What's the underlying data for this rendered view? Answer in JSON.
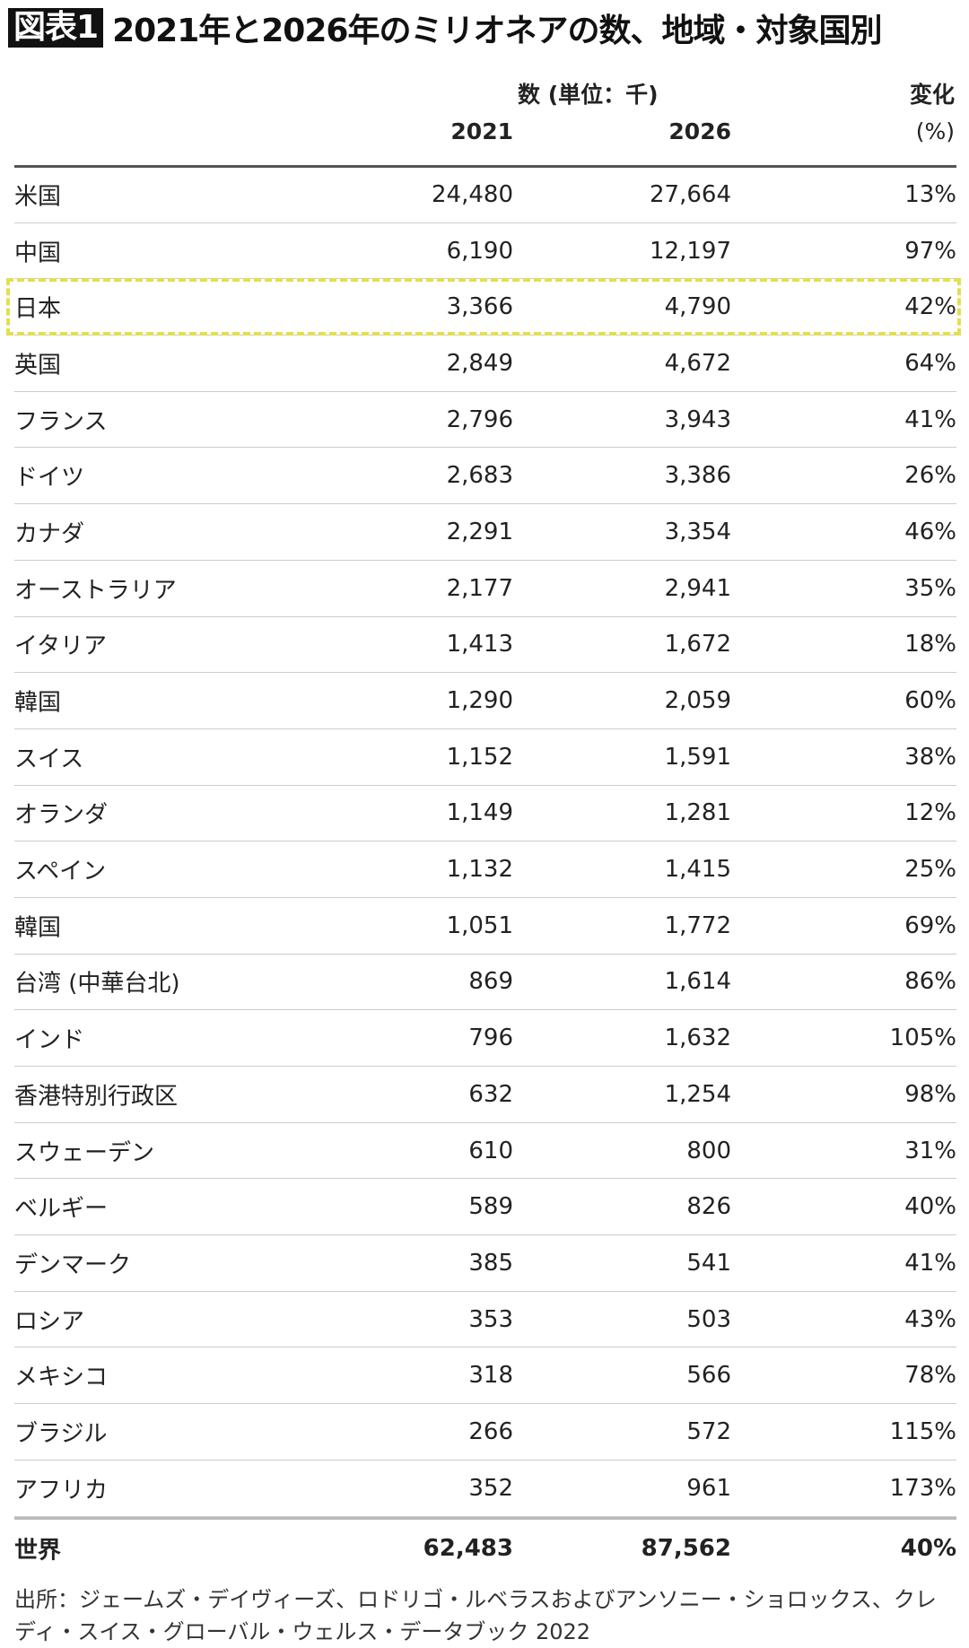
{
  "title": {
    "badge": "図表1",
    "text": "2021年と2026年のミリオネアの数、地域・対象国別"
  },
  "header": {
    "count_group": "数 (単位：千)",
    "change": "変化",
    "col_2021": "2021",
    "col_2026": "2026",
    "col_pct": "(%)"
  },
  "rows": [
    {
      "name": "米国",
      "y2021": "24,480",
      "y2026": "27,664",
      "change": "13%"
    },
    {
      "name": "中国",
      "y2021": "6,190",
      "y2026": "12,197",
      "change": "97%"
    },
    {
      "name": "日本",
      "y2021": "3,366",
      "y2026": "4,790",
      "change": "42%"
    },
    {
      "name": "英国",
      "y2021": "2,849",
      "y2026": "4,672",
      "change": "64%"
    },
    {
      "name": "フランス",
      "y2021": "2,796",
      "y2026": "3,943",
      "change": "41%"
    },
    {
      "name": "ドイツ",
      "y2021": "2,683",
      "y2026": "3,386",
      "change": "26%"
    },
    {
      "name": "カナダ",
      "y2021": "2,291",
      "y2026": "3,354",
      "change": "46%"
    },
    {
      "name": "オーストラリア",
      "y2021": "2,177",
      "y2026": "2,941",
      "change": "35%"
    },
    {
      "name": "イタリア",
      "y2021": "1,413",
      "y2026": "1,672",
      "change": "18%"
    },
    {
      "name": "韓国",
      "y2021": "1,290",
      "y2026": "2,059",
      "change": "60%"
    },
    {
      "name": "スイス",
      "y2021": "1,152",
      "y2026": "1,591",
      "change": "38%"
    },
    {
      "name": "オランダ",
      "y2021": "1,149",
      "y2026": "1,281",
      "change": "12%"
    },
    {
      "name": "スペイン",
      "y2021": "1,132",
      "y2026": "1,415",
      "change": "25%"
    },
    {
      "name": "韓国",
      "y2021": "1,051",
      "y2026": "1,772",
      "change": "69%"
    },
    {
      "name": "台湾 (中華台北)",
      "y2021": "869",
      "y2026": "1,614",
      "change": "86%"
    },
    {
      "name": "インド",
      "y2021": "796",
      "y2026": "1,632",
      "change": "105%"
    },
    {
      "name": "香港特別行政区",
      "y2021": "632",
      "y2026": "1,254",
      "change": "98%"
    },
    {
      "name": "スウェーデン",
      "y2021": "610",
      "y2026": "800",
      "change": "31%"
    },
    {
      "name": "ベルギー",
      "y2021": "589",
      "y2026": "826",
      "change": "40%"
    },
    {
      "name": "デンマーク",
      "y2021": "385",
      "y2026": "541",
      "change": "41%"
    },
    {
      "name": "ロシア",
      "y2021": "353",
      "y2026": "503",
      "change": "43%"
    },
    {
      "name": "メキシコ",
      "y2021": "318",
      "y2026": "566",
      "change": "78%"
    },
    {
      "name": "ブラジル",
      "y2021": "266",
      "y2026": "572",
      "change": "115%"
    },
    {
      "name": "アフリカ",
      "y2021": "352",
      "y2026": "961",
      "change": "173%"
    }
  ],
  "total": {
    "name": "世界",
    "y2021": "62,483",
    "y2026": "87,562",
    "change": "40%"
  },
  "highlight": {
    "row": "日本",
    "color": "#e3df4f"
  },
  "source": "出所：ジェームズ・デイヴィーズ、ロドリゴ・ルベラスおよびアンソニー・ショロックス、クレディ・スイス・グローバル・ウェルス・データブック 2022"
}
